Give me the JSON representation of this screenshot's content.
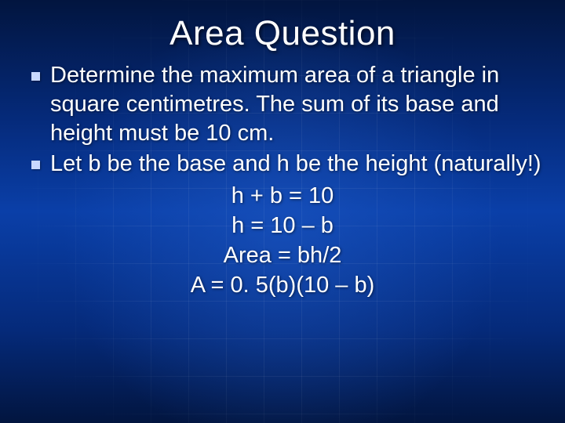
{
  "background": {
    "top_color": "#02153f",
    "mid_color": "#0a3fa8",
    "bottom_color": "#02153f",
    "grid_color": "rgba(255,255,255,0.06)",
    "text_color": "#ffffff"
  },
  "title": "Area Question",
  "title_fontsize": 44,
  "body_fontsize": 29,
  "bullets": [
    "Determine the maximum area of a triangle in square centimetres. The sum of its base and height must be 10 cm.",
    "Let b be the base and h be the height (naturally!)"
  ],
  "equations": [
    "h + b = 10",
    "h = 10 – b",
    "Area = bh/2",
    "A = 0. 5(b)(10 – b)"
  ]
}
